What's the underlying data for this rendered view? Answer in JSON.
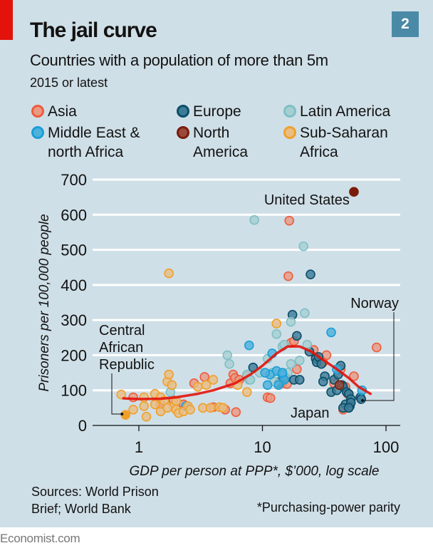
{
  "header": {
    "title": "The jail curve",
    "subtitle": "Countries with a population of more than 5m",
    "note": "2015 or latest",
    "chart_number": "2"
  },
  "legend": [
    {
      "key": "asia",
      "lines": [
        "Asia"
      ],
      "fill": "#e99a83",
      "stroke": "#ee5b3d"
    },
    {
      "key": "europe",
      "lines": [
        "Europe"
      ],
      "fill": "#3d7d98",
      "stroke": "#0b4e68"
    },
    {
      "key": "latam",
      "lines": [
        "Latin America"
      ],
      "fill": "#a7cfd2",
      "stroke": "#7ec0c5"
    },
    {
      "key": "mena",
      "lines": [
        "Middle East &",
        "north Africa"
      ],
      "fill": "#4db1dc",
      "stroke": "#1a9ed8"
    },
    {
      "key": "namerica",
      "lines": [
        "North",
        "America"
      ],
      "fill": "#9a4a3a",
      "stroke": "#7a1c0c"
    },
    {
      "key": "ssa",
      "lines": [
        "Sub-Saharan",
        "Africa"
      ],
      "fill": "#e8be85",
      "stroke": "#f0a02a"
    }
  ],
  "footer": {
    "sources_line1": "Sources: World Prison",
    "sources_line2": "Brief; World Bank",
    "footnote": "*Purchasing-power parity",
    "brand": "Economist.com"
  },
  "chart_data": {
    "type": "scatter",
    "title": "The jail curve",
    "xlabel": "GDP per person at PPP*, $’000, log scale",
    "ylabel": "Prisoners per 100,000 people",
    "xscale": "log",
    "xlim": [
      0.55,
      130
    ],
    "ylim": [
      0,
      700
    ],
    "xticks": [
      1,
      10,
      100
    ],
    "xtick_labels": [
      "1",
      "10",
      "100"
    ],
    "yticks": [
      0,
      100,
      200,
      300,
      400,
      500,
      600,
      700
    ],
    "ytick_labels": [
      "0",
      "100",
      "200",
      "300",
      "400",
      "500",
      "600",
      "700"
    ],
    "grid": "horizontal",
    "legend_position": "top",
    "annotations": [
      {
        "label": "United States",
        "x": 55,
        "y": 665
      },
      {
        "label": "Norway",
        "x": 62,
        "y": 75
      },
      {
        "label": "Japan",
        "x": 47,
        "y": 45
      },
      {
        "label": "Central African Republic",
        "x": 0.78,
        "y": 30
      }
    ],
    "annotation_lines": {
      "central_african_republic": [
        "Central",
        "African",
        "Republic"
      ]
    },
    "trend": {
      "name": "Trend",
      "color": "#e3120b",
      "x": [
        0.75,
        1.0,
        1.5,
        2,
        3,
        4,
        6,
        8,
        10,
        13,
        16,
        20,
        25,
        30,
        40,
        50,
        60,
        75
      ],
      "y": [
        77,
        75,
        76,
        80,
        90,
        100,
        120,
        145,
        170,
        205,
        225,
        225,
        210,
        190,
        160,
        135,
        110,
        90
      ]
    },
    "series": [
      {
        "name": "Asia",
        "key": "asia",
        "points": [
          [
            16.5,
            583
          ],
          [
            16.2,
            425
          ],
          [
            0.9,
            80
          ],
          [
            1.5,
            60
          ],
          [
            1.9,
            72
          ],
          [
            2.3,
            60
          ],
          [
            2.8,
            120
          ],
          [
            3.4,
            138
          ],
          [
            4.0,
            52
          ],
          [
            5.0,
            45
          ],
          [
            5.5,
            120
          ],
          [
            5.8,
            145
          ],
          [
            6.0,
            135
          ],
          [
            6.1,
            38
          ],
          [
            6.5,
            130
          ],
          [
            7.5,
            140
          ],
          [
            11,
            80
          ],
          [
            11.6,
            78
          ],
          [
            14.5,
            120
          ],
          [
            15.8,
            118
          ],
          [
            17,
            235
          ],
          [
            26,
            215
          ],
          [
            27,
            195
          ],
          [
            33,
            200
          ],
          [
            38,
            120
          ],
          [
            43,
            160
          ],
          [
            47,
            110
          ],
          [
            55,
            140
          ],
          [
            84,
            222
          ],
          [
            45,
            45
          ],
          [
            49,
            90
          ],
          [
            19,
            160
          ],
          [
            18,
            240
          ],
          [
            31,
            180
          ]
        ]
      },
      {
        "name": "Europe",
        "key": "europe",
        "points": [
          [
            24.5,
            430
          ],
          [
            17.5,
            315
          ],
          [
            19,
            255
          ],
          [
            8.4,
            165
          ],
          [
            13.5,
            120
          ],
          [
            14.0,
            125
          ],
          [
            15.5,
            135
          ],
          [
            18,
            130
          ],
          [
            24,
            210
          ],
          [
            27,
            190
          ],
          [
            27.5,
            180
          ],
          [
            28.5,
            195
          ],
          [
            30,
            175
          ],
          [
            32,
            140
          ],
          [
            38,
            130
          ],
          [
            41,
            145
          ],
          [
            44,
            115
          ],
          [
            45,
            110
          ],
          [
            48,
            95
          ],
          [
            50,
            90
          ],
          [
            52,
            75
          ],
          [
            47,
            60
          ],
          [
            51,
            55
          ],
          [
            52,
            65
          ],
          [
            36,
            95
          ],
          [
            40,
            100
          ],
          [
            43,
            170
          ],
          [
            31,
            125
          ],
          [
            20,
            130
          ],
          [
            45,
            50
          ],
          [
            50,
            50
          ],
          [
            62,
            80
          ],
          [
            63,
            75
          ]
        ]
      },
      {
        "name": "Latin America",
        "key": "latam",
        "points": [
          [
            8.6,
            585
          ],
          [
            21.5,
            510
          ],
          [
            22,
            320
          ],
          [
            17,
            295
          ],
          [
            13,
            260
          ],
          [
            14.5,
            225
          ],
          [
            15,
            230
          ],
          [
            23,
            230
          ],
          [
            5.2,
            200
          ],
          [
            5.4,
            175
          ],
          [
            11,
            190
          ],
          [
            7.5,
            145
          ],
          [
            9.5,
            150
          ],
          [
            12,
            150
          ],
          [
            17,
            175
          ],
          [
            20,
            185
          ],
          [
            12.5,
            125
          ],
          [
            7.8,
            130
          ],
          [
            8.0,
            130
          ],
          [
            1.8,
            95
          ],
          [
            16,
            150
          ]
        ]
      },
      {
        "name": "Middle East & north Africa",
        "key": "mena",
        "points": [
          [
            7.8,
            228
          ],
          [
            36,
            265
          ],
          [
            13,
            155
          ],
          [
            14.5,
            145
          ],
          [
            15.0,
            130
          ],
          [
            11.5,
            145
          ],
          [
            13.5,
            115
          ],
          [
            10.5,
            150
          ],
          [
            11,
            115
          ],
          [
            14.5,
            150
          ],
          [
            40,
            160
          ],
          [
            64,
            100
          ],
          [
            2.4,
            55
          ],
          [
            12,
            205
          ]
        ]
      },
      {
        "name": "North America",
        "key": "namerica",
        "points": [
          [
            55,
            665
          ],
          [
            42,
            115
          ]
        ]
      },
      {
        "name": "Sub-Saharan Africa",
        "key": "ssa",
        "points": [
          [
            1.75,
            433
          ],
          [
            0.78,
            30
          ],
          [
            0.72,
            88
          ],
          [
            0.9,
            45
          ],
          [
            1.1,
            80
          ],
          [
            1.1,
            55
          ],
          [
            1.15,
            25
          ],
          [
            1.35,
            60
          ],
          [
            1.35,
            90
          ],
          [
            1.5,
            80
          ],
          [
            1.6,
            70
          ],
          [
            1.7,
            125
          ],
          [
            1.75,
            145
          ],
          [
            1.85,
            115
          ],
          [
            1.9,
            55
          ],
          [
            2.0,
            45
          ],
          [
            2.1,
            35
          ],
          [
            2.3,
            40
          ],
          [
            2.5,
            55
          ],
          [
            2.6,
            45
          ],
          [
            3.0,
            110
          ],
          [
            3.3,
            50
          ],
          [
            3.8,
            50
          ],
          [
            4.0,
            130
          ],
          [
            4.5,
            52
          ],
          [
            6.3,
            115
          ],
          [
            7.5,
            95
          ],
          [
            13,
            290
          ],
          [
            1.5,
            40
          ],
          [
            1.7,
            50
          ],
          [
            2.0,
            70
          ],
          [
            3.5,
            115
          ],
          [
            4.8,
            50
          ]
        ]
      }
    ]
  }
}
